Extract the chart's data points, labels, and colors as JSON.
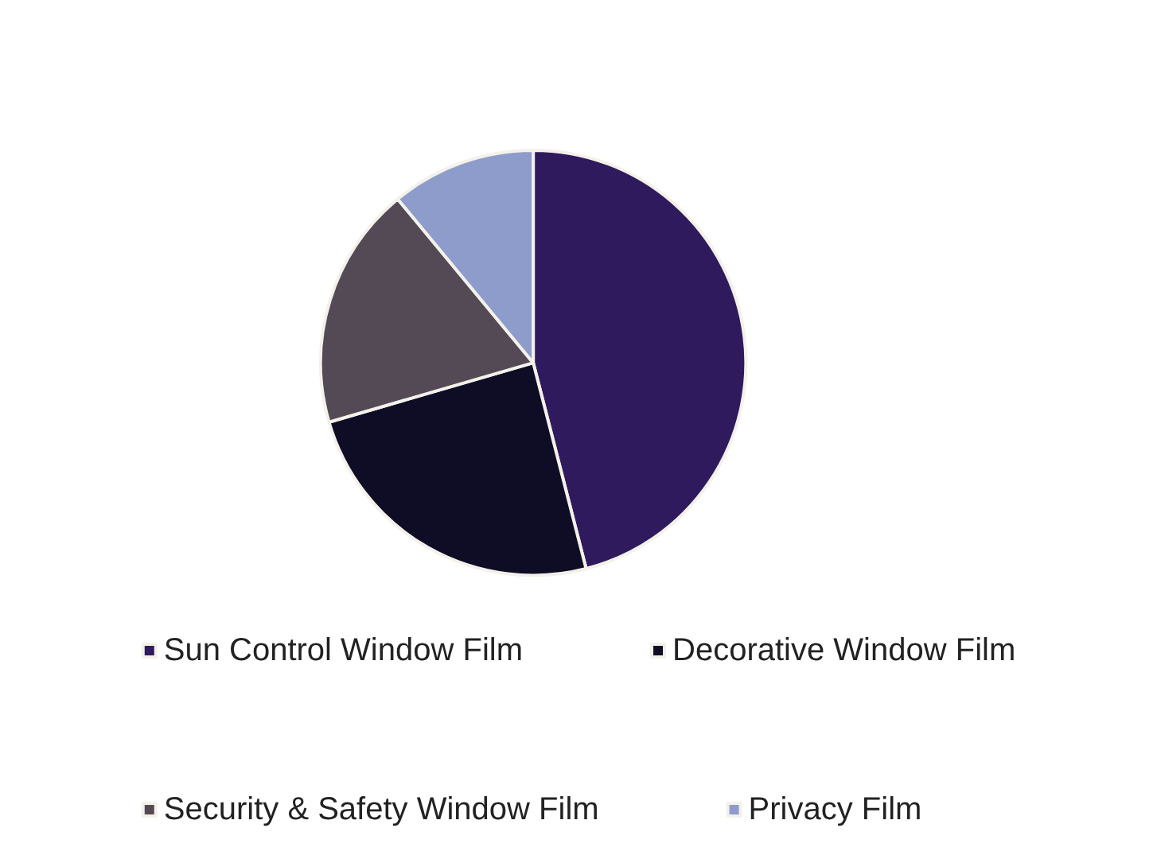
{
  "chart_data": {
    "type": "pie",
    "categories": [
      "Sun Control Window Film",
      "Decorative Window Film",
      "Security & Safety Window Film",
      "Privacy Film"
    ],
    "values": [
      46,
      24.5,
      18.5,
      11
    ],
    "colors": [
      "#2e1a5c",
      "#0f0c26",
      "#544a55",
      "#8d9ccb"
    ],
    "legend": "bottom"
  }
}
